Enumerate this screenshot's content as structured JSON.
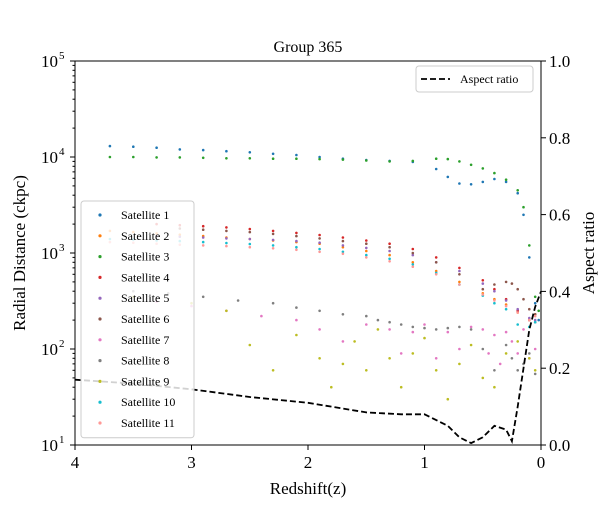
{
  "chart_data": {
    "type": "scatter",
    "title": "Group 365",
    "xlabel": "Redshift(z)",
    "ylabel": "Radial Distance (ckpc)",
    "y2label": "Aspect ratio",
    "x_ticks": [
      "4",
      "3",
      "2",
      "1",
      "0"
    ],
    "y_ticks": [
      "10",
      "10",
      "10",
      "10",
      "10"
    ],
    "y_tick_exponents": [
      "1",
      "2",
      "3",
      "4",
      "5"
    ],
    "y2_ticks": [
      "0.0",
      "0.2",
      "0.4",
      "0.6",
      "0.8",
      "1.0"
    ],
    "xlim": [
      4,
      0
    ],
    "ylim": [
      10,
      100000
    ],
    "yscale": "log",
    "y2lim": [
      0,
      1
    ],
    "grid": false,
    "legend_left_position": "center-left",
    "legend_right_position": "upper-right",
    "series": [
      {
        "name": "Satellite 1",
        "color": "#1f77b4",
        "x": [
          3.7,
          3.5,
          3.3,
          3.1,
          2.9,
          2.7,
          2.5,
          2.3,
          2.1,
          1.9,
          1.7,
          1.5,
          1.3,
          1.1,
          0.9,
          0.8,
          0.7,
          0.6,
          0.5,
          0.4,
          0.3,
          0.2,
          0.15,
          0.1,
          0.05,
          0.02
        ],
        "y": [
          13000,
          12800,
          12500,
          12000,
          11800,
          11500,
          11200,
          10800,
          10500,
          10000,
          9600,
          9300,
          9100,
          8900,
          7500,
          6200,
          5300,
          5200,
          5500,
          5900,
          5500,
          4200,
          2500,
          900,
          300,
          200
        ]
      },
      {
        "name": "Satellite 2",
        "color": "#ff7f0e",
        "x": [
          3.7,
          3.5,
          3.3,
          3.1,
          2.9,
          2.7,
          2.5,
          2.3,
          2.1,
          1.9,
          1.7,
          1.5,
          1.3,
          1.1,
          0.9,
          0.7,
          0.5,
          0.4,
          0.3,
          0.2,
          0.1,
          0.05
        ],
        "y": [
          1700,
          1650,
          1600,
          1550,
          1500,
          1450,
          1400,
          1350,
          1300,
          1250,
          1150,
          1050,
          950,
          800,
          650,
          500,
          380,
          330,
          290,
          240,
          200,
          230
        ]
      },
      {
        "name": "Satellite 3",
        "color": "#2ca02c",
        "x": [
          3.7,
          3.5,
          3.3,
          3.1,
          2.9,
          2.7,
          2.5,
          2.3,
          2.1,
          1.9,
          1.7,
          1.5,
          1.3,
          1.1,
          0.9,
          0.8,
          0.7,
          0.6,
          0.5,
          0.4,
          0.3,
          0.2,
          0.15,
          0.1,
          0.05,
          0.02
        ],
        "y": [
          10000,
          10000,
          9900,
          9900,
          9800,
          9700,
          9700,
          9600,
          9600,
          9500,
          9400,
          9200,
          9000,
          9100,
          9600,
          9500,
          9000,
          8300,
          7600,
          6800,
          5800,
          4500,
          3000,
          1200,
          350,
          250
        ]
      },
      {
        "name": "Satellite 4",
        "color": "#d62728",
        "x": [
          3.3,
          3.1,
          2.9,
          2.7,
          2.5,
          2.3,
          2.1,
          1.9,
          1.7,
          1.5,
          1.3,
          1.1,
          0.9,
          0.7,
          0.5,
          0.4,
          0.3,
          0.2,
          0.1,
          0.05
        ],
        "y": [
          2000,
          1950,
          1900,
          1850,
          1780,
          1700,
          1620,
          1540,
          1450,
          1350,
          1250,
          1100,
          900,
          700,
          520,
          420,
          330,
          250,
          200,
          190
        ]
      },
      {
        "name": "Satellite 5",
        "color": "#9467bd",
        "x": [
          3.3,
          3.1,
          2.9,
          2.7,
          2.5,
          2.3,
          2.1,
          1.9,
          1.7,
          1.5,
          1.3,
          1.1,
          0.9,
          0.7,
          0.5,
          0.4,
          0.3,
          0.2,
          0.1,
          0.05
        ],
        "y": [
          1500,
          1480,
          1450,
          1420,
          1400,
          1370,
          1330,
          1280,
          1200,
          1130,
          1050,
          950,
          800,
          650,
          480,
          400,
          320,
          260,
          210,
          200
        ]
      },
      {
        "name": "Satellite 6",
        "color": "#8c564b",
        "x": [
          3.1,
          2.9,
          2.7,
          2.5,
          2.3,
          2.1,
          1.9,
          1.7,
          1.5,
          1.3,
          1.1,
          0.9,
          0.7,
          0.5,
          0.4,
          0.3,
          0.25,
          0.2,
          0.15,
          0.1,
          0.05
        ],
        "y": [
          1800,
          1750,
          1700,
          1650,
          1580,
          1500,
          1420,
          1330,
          1250,
          1150,
          1000,
          800,
          600,
          420,
          470,
          500,
          480,
          420,
          330,
          260,
          230
        ]
      },
      {
        "name": "Satellite 7",
        "color": "#e377c2",
        "x": [
          3.3,
          3.0,
          2.7,
          2.4,
          2.1,
          1.9,
          1.7,
          1.5,
          1.3,
          1.2,
          1.1,
          1.0,
          0.9,
          0.8,
          0.7,
          0.6,
          0.5,
          0.45,
          0.4,
          0.35,
          0.3,
          0.25,
          0.2,
          0.15,
          0.1,
          0.05
        ],
        "y": [
          310,
          280,
          250,
          220,
          200,
          160,
          120,
          180,
          160,
          90,
          150,
          180,
          80,
          150,
          100,
          170,
          160,
          90,
          140,
          70,
          150,
          120,
          90,
          160,
          80,
          100
        ]
      },
      {
        "name": "Satellite 8",
        "color": "#7f7f7f",
        "x": [
          3.5,
          3.2,
          2.9,
          2.6,
          2.3,
          2.1,
          1.9,
          1.7,
          1.5,
          1.4,
          1.3,
          1.2,
          1.1,
          1.0,
          0.9,
          0.8,
          0.7,
          0.6,
          0.5,
          0.4,
          0.3,
          0.25,
          0.2,
          0.15,
          0.1,
          0.05
        ],
        "y": [
          400,
          380,
          350,
          320,
          300,
          270,
          250,
          230,
          220,
          200,
          190,
          180,
          170,
          165,
          160,
          165,
          170,
          160,
          100,
          60,
          110,
          80,
          60,
          70,
          90,
          55
        ]
      },
      {
        "name": "Satellite 9",
        "color": "#bcbd22",
        "x": [
          3.5,
          3.0,
          2.7,
          2.5,
          2.3,
          2.1,
          1.9,
          1.8,
          1.7,
          1.6,
          1.5,
          1.4,
          1.3,
          1.2,
          1.1,
          1.0,
          0.9,
          0.8,
          0.7,
          0.6,
          0.5,
          0.4,
          0.3,
          0.2,
          0.1,
          0.05
        ],
        "y": [
          350,
          300,
          250,
          110,
          60,
          140,
          80,
          40,
          70,
          120,
          60,
          160,
          80,
          40,
          90,
          130,
          60,
          30,
          70,
          110,
          50,
          40,
          90,
          120,
          80,
          60
        ]
      },
      {
        "name": "Satellite 10",
        "color": "#17becf",
        "x": [
          3.7,
          3.5,
          3.3,
          3.1,
          2.9,
          2.7,
          2.5,
          2.3,
          2.1,
          1.9,
          1.7,
          1.5,
          1.3,
          1.1,
          0.9,
          0.7,
          0.5,
          0.4,
          0.3,
          0.2,
          0.1,
          0.05
        ],
        "y": [
          1400,
          1380,
          1350,
          1330,
          1300,
          1270,
          1240,
          1200,
          1150,
          1100,
          1030,
          950,
          870,
          760,
          620,
          470,
          360,
          300,
          260,
          180,
          170,
          190
        ]
      },
      {
        "name": "Satellite 11",
        "color": "#ff9896",
        "x": [
          3.7,
          3.5,
          3.3,
          3.1,
          2.9,
          2.7,
          2.5,
          2.3,
          2.1,
          1.9,
          1.7,
          1.5,
          1.3,
          1.1,
          0.9,
          0.7,
          0.5,
          0.4,
          0.3,
          0.2,
          0.1,
          0.05
        ],
        "y": [
          1300,
          1280,
          1250,
          1220,
          1200,
          1180,
          1150,
          1120,
          1080,
          1030,
          980,
          900,
          820,
          720,
          600,
          470,
          370,
          320,
          280,
          240,
          200,
          220
        ]
      }
    ],
    "aspect_ratio": {
      "name": "Aspect ratio",
      "color": "#000000",
      "style": "dashed",
      "x": [
        4.0,
        3.5,
        3.0,
        2.5,
        2.0,
        1.5,
        1.2,
        1.0,
        0.8,
        0.7,
        0.6,
        0.5,
        0.4,
        0.3,
        0.25,
        0.2,
        0.15,
        0.1,
        0.05,
        0.0
      ],
      "y": [
        0.17,
        0.16,
        0.145,
        0.125,
        0.11,
        0.085,
        0.08,
        0.08,
        0.05,
        0.02,
        0.005,
        0.02,
        0.05,
        0.04,
        0.01,
        0.1,
        0.2,
        0.3,
        0.36,
        0.4
      ]
    }
  }
}
